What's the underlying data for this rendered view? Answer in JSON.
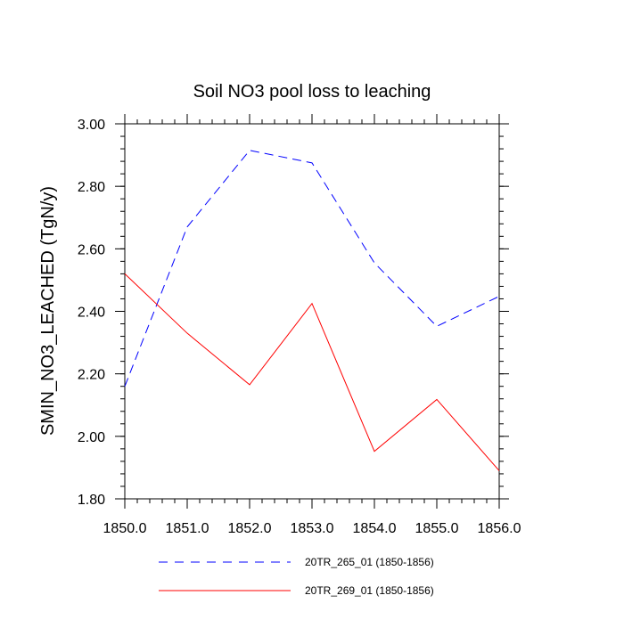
{
  "chart_data": {
    "type": "line",
    "title": "Soil NO3 pool loss to leaching",
    "xlabel": "",
    "ylabel": "SMIN_NO3_LEACHED  (TgN/y)",
    "xlim": [
      1850,
      1856
    ],
    "ylim": [
      1.8,
      3.0
    ],
    "x_ticks": [
      1850,
      1851,
      1852,
      1853,
      1854,
      1855,
      1856
    ],
    "x_tick_labels": [
      "1850.0",
      "1851.0",
      "1852.0",
      "1853.0",
      "1854.0",
      "1855.0",
      "1856.0"
    ],
    "y_ticks": [
      1.8,
      2.0,
      2.2,
      2.4,
      2.6,
      2.8,
      3.0
    ],
    "y_tick_labels": [
      "1.80",
      "2.00",
      "2.20",
      "2.40",
      "2.60",
      "2.80",
      "3.00"
    ],
    "grid": false,
    "legend_position": "bottom",
    "x": [
      1850,
      1851,
      1852,
      1853,
      1854,
      1855,
      1856
    ],
    "series": [
      {
        "name": "20TR_265_01 (1850-1856)",
        "values": [
          2.16,
          2.67,
          2.915,
          2.875,
          2.555,
          2.352,
          2.448
        ],
        "color": "#0000ff",
        "dash": "dashed"
      },
      {
        "name": "20TR_269_01 (1850-1856)",
        "values": [
          2.52,
          2.33,
          2.165,
          2.425,
          1.952,
          2.118,
          1.89
        ],
        "color": "#ff0000",
        "dash": "solid"
      }
    ]
  }
}
